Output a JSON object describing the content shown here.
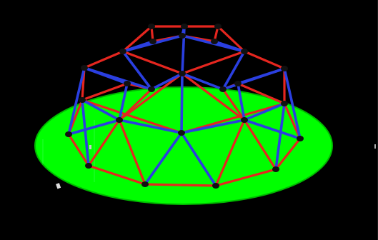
{
  "image": {
    "background_color": "#000000",
    "ground_color": "#00ff00",
    "ground_edge_color": "#00cc00",
    "strut_red": "#e5261f",
    "strut_blue": "#2a3fe0",
    "hub_color": "#111111"
  },
  "icons": {
    "dome": "geodesic-dome-icon"
  }
}
